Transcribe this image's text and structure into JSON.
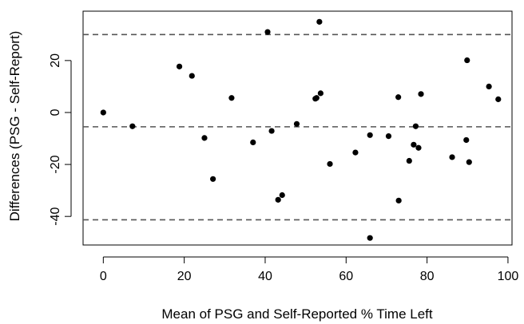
{
  "chart_data": {
    "type": "scatter",
    "title": "",
    "xlabel": "Mean of PSG and Self-Reported % Time Left",
    "ylabel": "Differences (PSG - Self-Report)",
    "xlim": [
      -5,
      101
    ],
    "ylim": [
      -51,
      39
    ],
    "xticks": [
      0,
      20,
      40,
      60,
      80,
      100
    ],
    "yticks": [
      -40,
      -20,
      0,
      20
    ],
    "grid": false,
    "points": [
      {
        "x": 0,
        "y": 0
      },
      {
        "x": 7.2,
        "y": -5.3
      },
      {
        "x": 18.8,
        "y": 17.7
      },
      {
        "x": 21.9,
        "y": 14.1
      },
      {
        "x": 25,
        "y": -9.8
      },
      {
        "x": 27.1,
        "y": -25.6
      },
      {
        "x": 31.7,
        "y": 5.6
      },
      {
        "x": 37,
        "y": -11.5
      },
      {
        "x": 40.6,
        "y": 31
      },
      {
        "x": 41.6,
        "y": -7.1
      },
      {
        "x": 43.2,
        "y": -33.6
      },
      {
        "x": 44.2,
        "y": -31.8
      },
      {
        "x": 47.8,
        "y": -4.4
      },
      {
        "x": 52.4,
        "y": 5.3
      },
      {
        "x": 52.7,
        "y": 5.6
      },
      {
        "x": 53.4,
        "y": 34.9
      },
      {
        "x": 53.7,
        "y": 7.4
      },
      {
        "x": 56,
        "y": -19.8
      },
      {
        "x": 62.3,
        "y": -15.4
      },
      {
        "x": 65.9,
        "y": -8.7
      },
      {
        "x": 65.9,
        "y": -48.3
      },
      {
        "x": 70.5,
        "y": -9.1
      },
      {
        "x": 72.9,
        "y": 5.9
      },
      {
        "x": 73,
        "y": -33.9
      },
      {
        "x": 75.6,
        "y": -18.6
      },
      {
        "x": 76.7,
        "y": -12.4
      },
      {
        "x": 77.2,
        "y": -5.3
      },
      {
        "x": 77.9,
        "y": -13.6
      },
      {
        "x": 78.5,
        "y": 7.1
      },
      {
        "x": 86.2,
        "y": -17.2
      },
      {
        "x": 89.7,
        "y": -10.6
      },
      {
        "x": 89.9,
        "y": 20.1
      },
      {
        "x": 90.4,
        "y": -19.1
      },
      {
        "x": 95.3,
        "y": 10
      },
      {
        "x": 97.6,
        "y": 5.1
      }
    ],
    "reference_lines": [
      30,
      -5.5,
      -41.3
    ]
  }
}
